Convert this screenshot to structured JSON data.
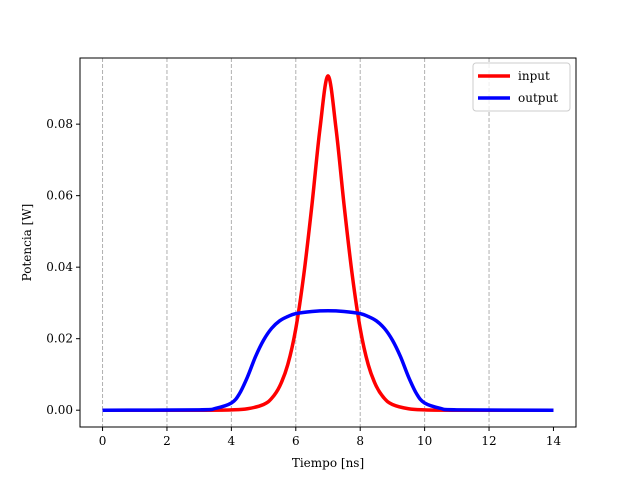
{
  "chart_data": {
    "type": "line",
    "xlabel": "Tiempo [ns]",
    "ylabel": "Potencia [W]",
    "xlim": [
      -0.7,
      14.7
    ],
    "ylim": [
      -0.0047,
      0.0985
    ],
    "xticks": [
      0,
      2,
      4,
      6,
      8,
      10,
      12,
      14
    ],
    "xtick_labels": [
      "0",
      "2",
      "4",
      "6",
      "8",
      "10",
      "12",
      "14"
    ],
    "yticks": [
      0.0,
      0.02,
      0.04,
      0.06,
      0.08
    ],
    "ytick_labels": [
      "0.00",
      "0.02",
      "0.04",
      "0.06",
      "0.08"
    ],
    "vertical_grid_at": [
      0,
      2,
      4,
      6,
      8,
      10,
      12
    ],
    "grid": "vertical dashed gray",
    "legend_position": "top-right",
    "series": [
      {
        "name": "input",
        "color": "#ff0000",
        "x": [
          0,
          3.0,
          4.0,
          4.5,
          5.0,
          5.25,
          5.5,
          5.75,
          6.0,
          6.25,
          6.5,
          6.75,
          7.0,
          7.25,
          7.5,
          7.75,
          8.0,
          8.25,
          8.5,
          8.75,
          9.0,
          9.5,
          10.0,
          11.0,
          14.0
        ],
        "y": [
          0.0,
          0.0,
          0.0001,
          0.0004,
          0.0016,
          0.0033,
          0.0067,
          0.0127,
          0.0228,
          0.038,
          0.0573,
          0.0787,
          0.0935,
          0.0787,
          0.0573,
          0.038,
          0.0228,
          0.0127,
          0.0067,
          0.0033,
          0.0016,
          0.0004,
          0.0001,
          0.0,
          0.0
        ]
      },
      {
        "name": "output",
        "color": "#0000ff",
        "x": [
          0,
          3.0,
          3.5,
          4.0,
          4.25,
          4.5,
          4.75,
          5.0,
          5.25,
          5.5,
          5.75,
          6.0,
          6.5,
          7.0,
          7.5,
          8.0,
          8.25,
          8.5,
          8.75,
          9.0,
          9.25,
          9.5,
          9.75,
          10.0,
          10.5,
          11.0,
          14.0
        ],
        "y": [
          0.0,
          0.0001,
          0.0005,
          0.002,
          0.0046,
          0.0093,
          0.015,
          0.0196,
          0.0229,
          0.025,
          0.0262,
          0.027,
          0.0276,
          0.0278,
          0.0276,
          0.027,
          0.0262,
          0.025,
          0.0229,
          0.0196,
          0.015,
          0.0093,
          0.0046,
          0.002,
          0.0005,
          0.0001,
          0.0
        ]
      }
    ]
  }
}
